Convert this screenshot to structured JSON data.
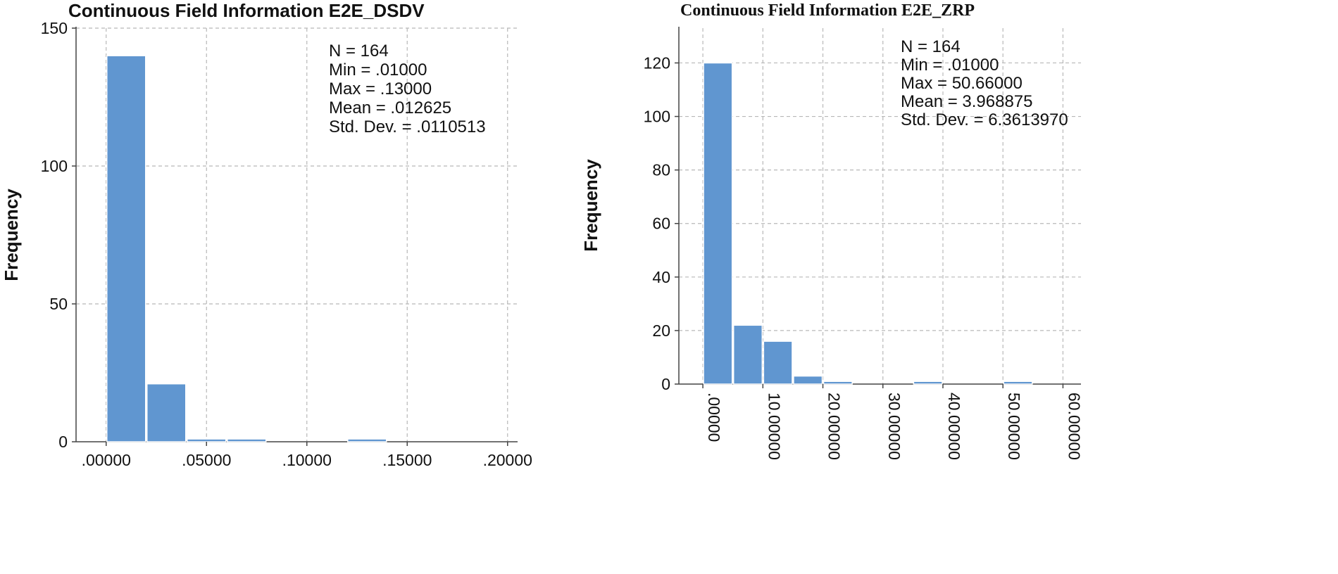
{
  "chart_data": [
    {
      "type": "bar",
      "title": "Continuous Field Information E2E_DSDV",
      "xlabel": "",
      "ylabel": "Frequency",
      "xlim": [
        -0.015,
        0.205
      ],
      "ylim": [
        0,
        150
      ],
      "x_ticks": [
        0.0,
        0.05,
        0.1,
        0.15,
        0.2
      ],
      "x_tick_labels": [
        ".00000",
        ".05000",
        ".10000",
        ".15000",
        ".20000"
      ],
      "y_ticks": [
        0,
        50,
        100,
        150
      ],
      "y_tick_labels": [
        "0",
        "50",
        "100",
        "150"
      ],
      "grid": true,
      "bins": [
        {
          "x0": 0.0,
          "x1": 0.02,
          "count": 140
        },
        {
          "x0": 0.02,
          "x1": 0.04,
          "count": 21
        },
        {
          "x0": 0.04,
          "x1": 0.06,
          "count": 1
        },
        {
          "x0": 0.06,
          "x1": 0.08,
          "count": 1
        },
        {
          "x0": 0.08,
          "x1": 0.1,
          "count": 0
        },
        {
          "x0": 0.1,
          "x1": 0.12,
          "count": 0
        },
        {
          "x0": 0.12,
          "x1": 0.14,
          "count": 1
        }
      ],
      "stats": [
        "N = 164",
        "Min = .01000",
        "Max = .13000",
        "Mean = .012625",
        "Std. Dev. = .0110513"
      ],
      "bar_color": "#6096d0",
      "x_labels_rotated": false
    },
    {
      "type": "bar",
      "title": "Continuous Field Information E2E_ZRP",
      "xlabel": "",
      "ylabel": "Frequency",
      "xlim": [
        -4,
        63
      ],
      "ylim": [
        0,
        133
      ],
      "x_ticks": [
        0,
        10,
        20,
        30,
        40,
        50,
        60
      ],
      "x_tick_labels": [
        ".00000",
        "10.00000",
        "20.00000",
        "30.00000",
        "40.00000",
        "50.00000",
        "60.00000"
      ],
      "y_ticks": [
        0,
        20,
        40,
        60,
        80,
        100,
        120
      ],
      "y_tick_labels": [
        "0",
        "20",
        "40",
        "60",
        "80",
        "100",
        "120"
      ],
      "grid": true,
      "bins": [
        {
          "x0": 0,
          "x1": 5,
          "count": 120
        },
        {
          "x0": 5,
          "x1": 10,
          "count": 22
        },
        {
          "x0": 10,
          "x1": 15,
          "count": 16
        },
        {
          "x0": 15,
          "x1": 20,
          "count": 3
        },
        {
          "x0": 20,
          "x1": 25,
          "count": 1
        },
        {
          "x0": 25,
          "x1": 30,
          "count": 0
        },
        {
          "x0": 30,
          "x1": 35,
          "count": 0
        },
        {
          "x0": 35,
          "x1": 40,
          "count": 1
        },
        {
          "x0": 40,
          "x1": 45,
          "count": 0
        },
        {
          "x0": 45,
          "x1": 50,
          "count": 0
        },
        {
          "x0": 50,
          "x1": 55,
          "count": 1
        }
      ],
      "stats": [
        "N = 164",
        "Min = .01000",
        "Max = 50.66000",
        "Mean = 3.968875",
        "Std. Dev. = 6.3613970"
      ],
      "bar_color": "#6096d0",
      "x_labels_rotated": true
    }
  ]
}
